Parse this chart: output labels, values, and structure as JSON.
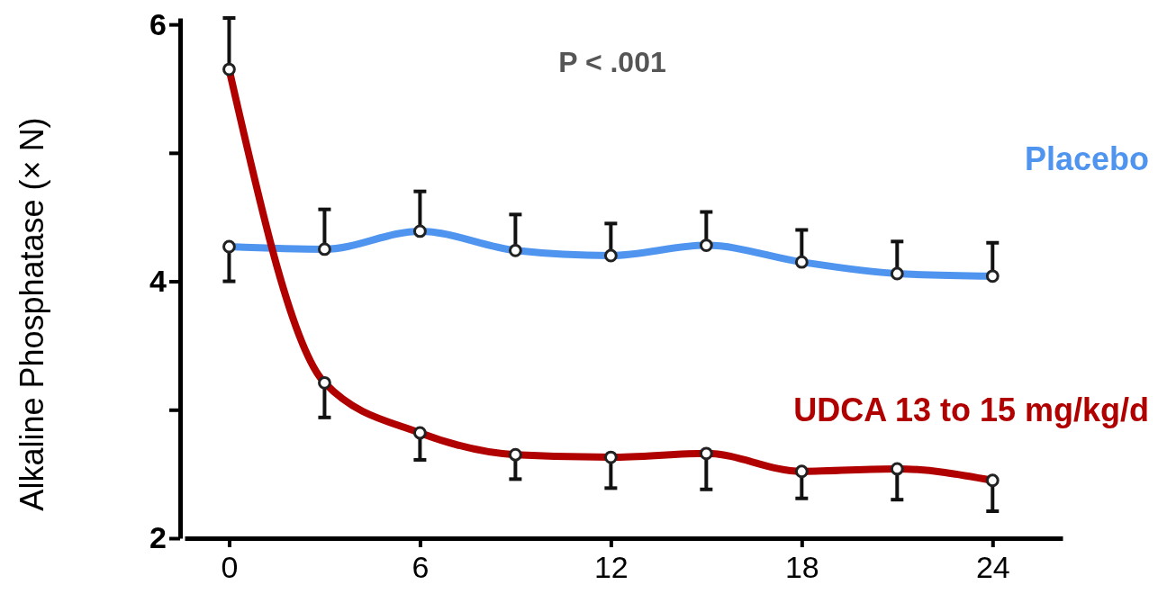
{
  "chart_data": {
    "type": "line",
    "ylabel": "Alkaline Phosphatase (× N)",
    "x": [
      0,
      3,
      6,
      9,
      12,
      15,
      18,
      21,
      24
    ],
    "xlim": [
      -1.4,
      26.2
    ],
    "xticks": [
      0,
      6,
      12,
      18,
      24
    ],
    "ylim": [
      2,
      6.05
    ],
    "yticks": [
      2,
      {
        "value": 3,
        "label": null
      },
      4,
      {
        "value": 5,
        "label": null
      },
      6
    ],
    "marker": "circle",
    "grid": false,
    "series": [
      {
        "name": "Placebo",
        "color": "#4f94ef",
        "values": [
          4.27,
          4.25,
          4.39,
          4.24,
          4.2,
          4.28,
          4.15,
          4.06,
          4.04
        ],
        "errors": [
          [
            4.0,
            4.27
          ],
          [
            4.25,
            4.56
          ],
          [
            4.39,
            4.7
          ],
          [
            4.24,
            4.52
          ],
          [
            4.2,
            4.45
          ],
          [
            4.28,
            4.54
          ],
          [
            4.15,
            4.4
          ],
          [
            4.06,
            4.31
          ],
          [
            4.04,
            4.3
          ]
        ]
      },
      {
        "name": "UDCA 13 to 15 mg/kg/d",
        "color": "#b00000",
        "values": [
          5.65,
          3.21,
          2.82,
          2.65,
          2.63,
          2.66,
          2.52,
          2.54,
          2.45
        ],
        "errors": [
          [
            5.65,
            6.05
          ],
          [
            2.94,
            3.21
          ],
          [
            2.61,
            2.82
          ],
          [
            2.46,
            2.65
          ],
          [
            2.39,
            2.63
          ],
          [
            2.38,
            2.66
          ],
          [
            2.31,
            2.52
          ],
          [
            2.3,
            2.54
          ],
          [
            2.21,
            2.45
          ]
        ]
      }
    ],
    "annotations": [
      "P < .001"
    ]
  }
}
